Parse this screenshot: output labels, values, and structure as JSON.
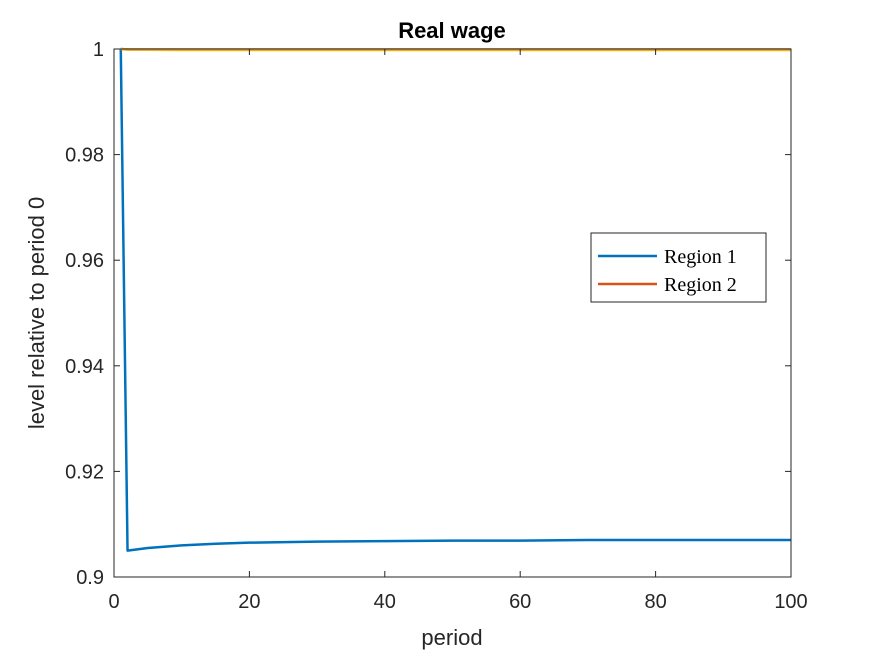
{
  "chart_data": {
    "type": "line",
    "title": "Real wage",
    "xlabel": "period",
    "ylabel": "level relative to period 0",
    "xlim": [
      0,
      100
    ],
    "ylim": [
      0.9,
      1.0
    ],
    "xticks": [
      0,
      20,
      40,
      60,
      80,
      100
    ],
    "yticks": [
      0.9,
      0.92,
      0.94,
      0.96,
      0.98,
      1.0
    ],
    "xtick_labels": [
      "0",
      "20",
      "40",
      "60",
      "80",
      "100"
    ],
    "ytick_labels": [
      "0.9",
      "0.92",
      "0.94",
      "0.96",
      "0.98",
      "1"
    ],
    "grid": false,
    "legend_position": "right",
    "series": [
      {
        "name": "Region 1",
        "color": "#0072BD",
        "legend": true,
        "x": [
          1,
          2,
          5,
          10,
          15,
          20,
          30,
          40,
          50,
          60,
          70,
          80,
          90,
          100
        ],
        "y": [
          1.0,
          0.905,
          0.9055,
          0.906,
          0.9063,
          0.9065,
          0.9067,
          0.9068,
          0.9069,
          0.9069,
          0.907,
          0.907,
          0.907,
          0.907
        ]
      },
      {
        "name": "Region 2",
        "color": "#D95319",
        "legend": true,
        "x": [
          1,
          2,
          5,
          10,
          20,
          30,
          40,
          50,
          60,
          70,
          80,
          90,
          100
        ],
        "y": [
          1.0,
          0.9999,
          0.9999,
          0.9999,
          0.9999,
          0.9999,
          0.9999,
          0.9999,
          0.9999,
          0.9999,
          0.9999,
          0.9999,
          0.9999
        ]
      },
      {
        "color": "#EDB120",
        "legend": false,
        "x": [
          1,
          2,
          5,
          10,
          20,
          30,
          40,
          50,
          60,
          70,
          80,
          90,
          100
        ],
        "y": [
          1.0,
          0.9999,
          0.99985,
          0.9998,
          0.9998,
          0.9998,
          0.9998,
          0.9998,
          0.9998,
          0.9998,
          0.9998,
          0.9998,
          0.9998
        ]
      }
    ]
  }
}
